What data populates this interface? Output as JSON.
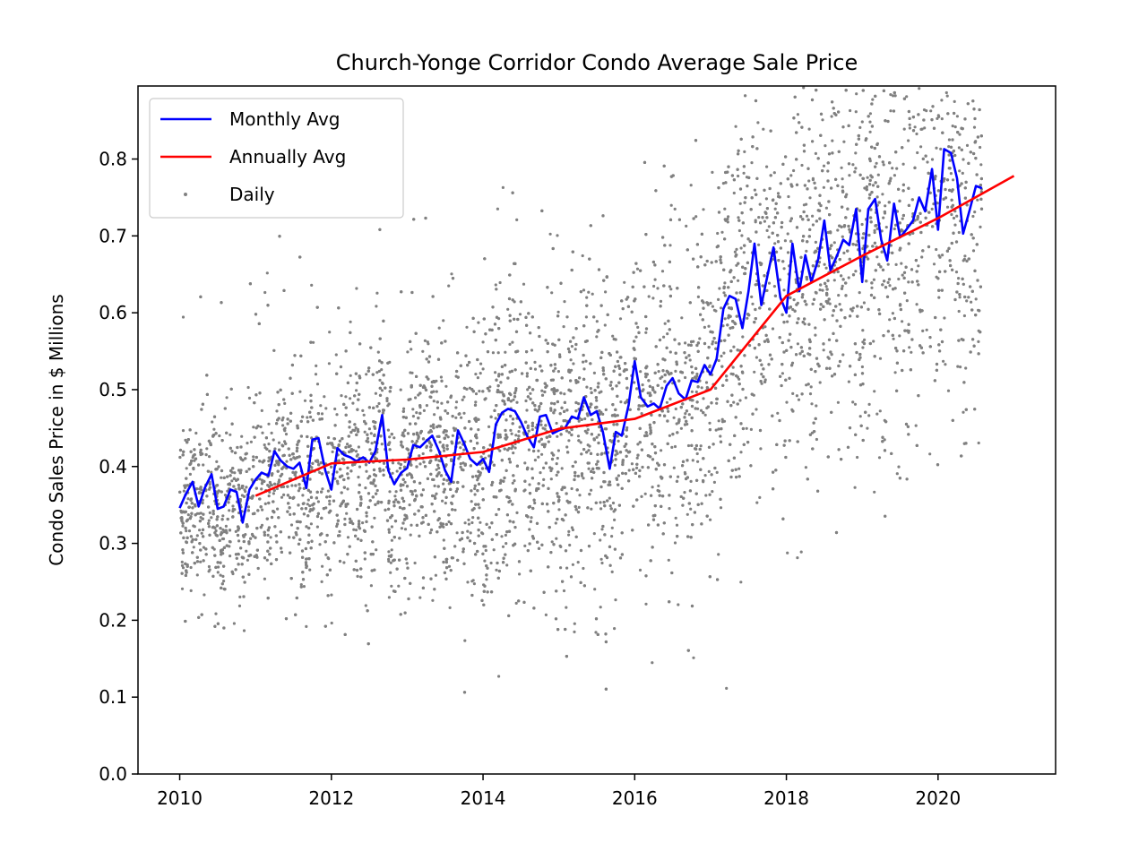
{
  "chart_data": {
    "type": "line",
    "title": "Church-Yonge Corridor Condo Average Sale Price",
    "xlabel": "",
    "ylabel": "Condo Sales Price in $ Millions",
    "xlim": [
      2009.45,
      2021.55
    ],
    "ylim": [
      0.0,
      0.895
    ],
    "x_ticks": [
      2010,
      2012,
      2014,
      2016,
      2018,
      2020
    ],
    "y_ticks": [
      0.0,
      0.1,
      0.2,
      0.3,
      0.4,
      0.5,
      0.6,
      0.7,
      0.8
    ],
    "grid": false,
    "legend_position": "top-left",
    "legend": [
      {
        "label": "Monthly Avg",
        "color": "#0000ff",
        "kind": "line"
      },
      {
        "label": "Annually Avg",
        "color": "#ff0000",
        "kind": "line"
      },
      {
        "label": "Daily",
        "color": "#808080",
        "kind": "dot"
      }
    ],
    "series": [
      {
        "name": "Monthly Avg",
        "color": "#0000ff",
        "x": [
          2010.0,
          2010.08,
          2010.17,
          2010.25,
          2010.33,
          2010.42,
          2010.5,
          2010.58,
          2010.67,
          2010.75,
          2010.83,
          2010.92,
          2011.0,
          2011.08,
          2011.17,
          2011.25,
          2011.33,
          2011.42,
          2011.5,
          2011.58,
          2011.67,
          2011.75,
          2011.83,
          2011.92,
          2012.0,
          2012.08,
          2012.17,
          2012.25,
          2012.33,
          2012.42,
          2012.5,
          2012.58,
          2012.67,
          2012.75,
          2012.83,
          2012.92,
          2013.0,
          2013.08,
          2013.17,
          2013.25,
          2013.33,
          2013.42,
          2013.5,
          2013.58,
          2013.67,
          2013.75,
          2013.83,
          2013.92,
          2014.0,
          2014.08,
          2014.17,
          2014.25,
          2014.33,
          2014.42,
          2014.5,
          2014.58,
          2014.67,
          2014.75,
          2014.83,
          2014.92,
          2015.0,
          2015.08,
          2015.17,
          2015.25,
          2015.33,
          2015.42,
          2015.5,
          2015.58,
          2015.67,
          2015.75,
          2015.83,
          2015.92,
          2016.0,
          2016.08,
          2016.17,
          2016.25,
          2016.33,
          2016.42,
          2016.5,
          2016.58,
          2016.67,
          2016.75,
          2016.83,
          2016.92,
          2017.0,
          2017.08,
          2017.17,
          2017.25,
          2017.33,
          2017.42,
          2017.5,
          2017.58,
          2017.67,
          2017.75,
          2017.83,
          2017.92,
          2018.0,
          2018.08,
          2018.17,
          2018.25,
          2018.33,
          2018.42,
          2018.5,
          2018.58,
          2018.67,
          2018.75,
          2018.83,
          2018.92,
          2019.0,
          2019.08,
          2019.17,
          2019.25,
          2019.33,
          2019.42,
          2019.5,
          2019.58,
          2019.67,
          2019.75,
          2019.83,
          2019.92,
          2020.0,
          2020.08,
          2020.17,
          2020.25,
          2020.33,
          2020.42,
          2020.5,
          2020.58
        ],
        "values": [
          0.346,
          0.364,
          0.38,
          0.348,
          0.372,
          0.39,
          0.345,
          0.348,
          0.37,
          0.367,
          0.327,
          0.37,
          0.383,
          0.392,
          0.388,
          0.42,
          0.408,
          0.4,
          0.397,
          0.405,
          0.372,
          0.435,
          0.437,
          0.395,
          0.37,
          0.424,
          0.415,
          0.412,
          0.407,
          0.412,
          0.405,
          0.42,
          0.467,
          0.395,
          0.377,
          0.392,
          0.398,
          0.428,
          0.425,
          0.433,
          0.44,
          0.42,
          0.395,
          0.38,
          0.447,
          0.43,
          0.41,
          0.402,
          0.41,
          0.393,
          0.455,
          0.47,
          0.475,
          0.472,
          0.458,
          0.44,
          0.425,
          0.465,
          0.467,
          0.443,
          0.447,
          0.45,
          0.465,
          0.462,
          0.49,
          0.467,
          0.472,
          0.445,
          0.397,
          0.445,
          0.44,
          0.48,
          0.537,
          0.49,
          0.478,
          0.482,
          0.475,
          0.505,
          0.515,
          0.495,
          0.487,
          0.512,
          0.51,
          0.532,
          0.52,
          0.54,
          0.605,
          0.622,
          0.618,
          0.58,
          0.628,
          0.69,
          0.61,
          0.648,
          0.685,
          0.62,
          0.6,
          0.69,
          0.628,
          0.675,
          0.64,
          0.67,
          0.72,
          0.655,
          0.675,
          0.695,
          0.688,
          0.735,
          0.64,
          0.735,
          0.748,
          0.695,
          0.668,
          0.742,
          0.698,
          0.708,
          0.72,
          0.75,
          0.732,
          0.787,
          0.708,
          0.813,
          0.808,
          0.775,
          0.703,
          0.735,
          0.765,
          0.762
        ]
      },
      {
        "name": "Annually Avg",
        "color": "#ff0000",
        "x": [
          2011.0,
          2012.0,
          2013.0,
          2014.0,
          2015.0,
          2016.0,
          2017.0,
          2018.0,
          2019.0,
          2020.0,
          2021.0
        ],
        "values": [
          0.362,
          0.404,
          0.409,
          0.419,
          0.449,
          0.462,
          0.5,
          0.622,
          0.674,
          0.723,
          0.778
        ]
      }
    ],
    "scatter": {
      "name": "Daily",
      "color": "#808080",
      "count": 9000,
      "x_range": [
        2010.0,
        2020.58
      ],
      "y_range": [
        0.0,
        0.895
      ]
    }
  }
}
